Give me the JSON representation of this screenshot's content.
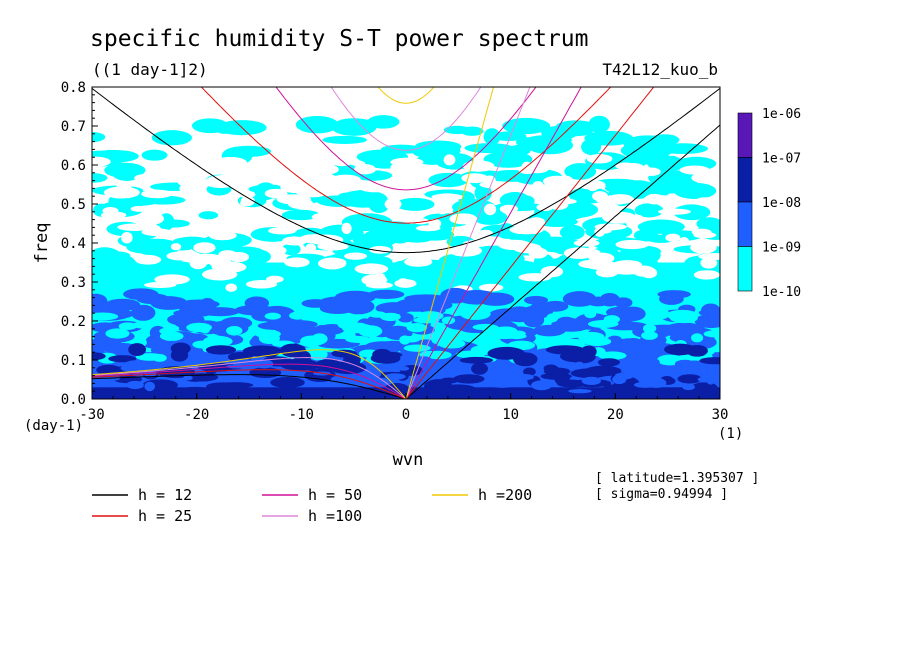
{
  "chart_data": {
    "type": "heatmap",
    "title": "specific humidity S-T power spectrum",
    "subtitle": "((1 day-1]2)",
    "experiment": "T42L12_kuo_b",
    "xlabel": "wvn",
    "ylabel": "freq",
    "x_unit": "(1)",
    "y_unit": "(day-1)",
    "xlim": [
      -30,
      30
    ],
    "ylim": [
      0.0,
      0.8
    ],
    "x_ticks": [
      "-30",
      "-20",
      "-10",
      "0",
      "10",
      "20",
      "30"
    ],
    "y_ticks": [
      "0.0",
      "0.1",
      "0.2",
      "0.3",
      "0.4",
      "0.5",
      "0.6",
      "0.7",
      "0.8"
    ],
    "colorbar": {
      "labels": [
        "1e-06",
        "1e-07",
        "1e-08",
        "1e-09",
        "1e-10"
      ],
      "colors": [
        "#5a17b8",
        "#0a1fa5",
        "#1f5fff",
        "#00ffff"
      ],
      "bands": [
        "1e-07 to 1e-06",
        "1e-08 to 1e-07",
        "1e-09 to 1e-08",
        "1e-10 to 1e-09"
      ]
    },
    "level_bands": [
      {
        "band": "1e-08 to 1e-07",
        "color": "#0a1fa5",
        "freq_range": [
          0.0,
          0.05
        ]
      },
      {
        "band": "1e-09 to 1e-08",
        "color": "#1f5fff",
        "freq_range": [
          0.0,
          0.25
        ]
      },
      {
        "band": "1e-10 to 1e-09",
        "color": "#00ffff",
        "freq_range": [
          0.0,
          0.7
        ]
      }
    ],
    "dispersion_curves": [
      {
        "h": 12,
        "label": "h = 12",
        "color": "#000000"
      },
      {
        "h": 25,
        "label": "h = 25",
        "color": "#e01010"
      },
      {
        "h": 50,
        "label": "h = 50",
        "color": "#d0109a"
      },
      {
        "h": 100,
        "label": "h =100",
        "color": "#dd88dd"
      },
      {
        "h": 200,
        "label": "h =200",
        "color": "#f0c800"
      }
    ],
    "annotations": [
      "[ latitude=1.395307 ]",
      "[ sigma=0.94994 ]"
    ]
  }
}
